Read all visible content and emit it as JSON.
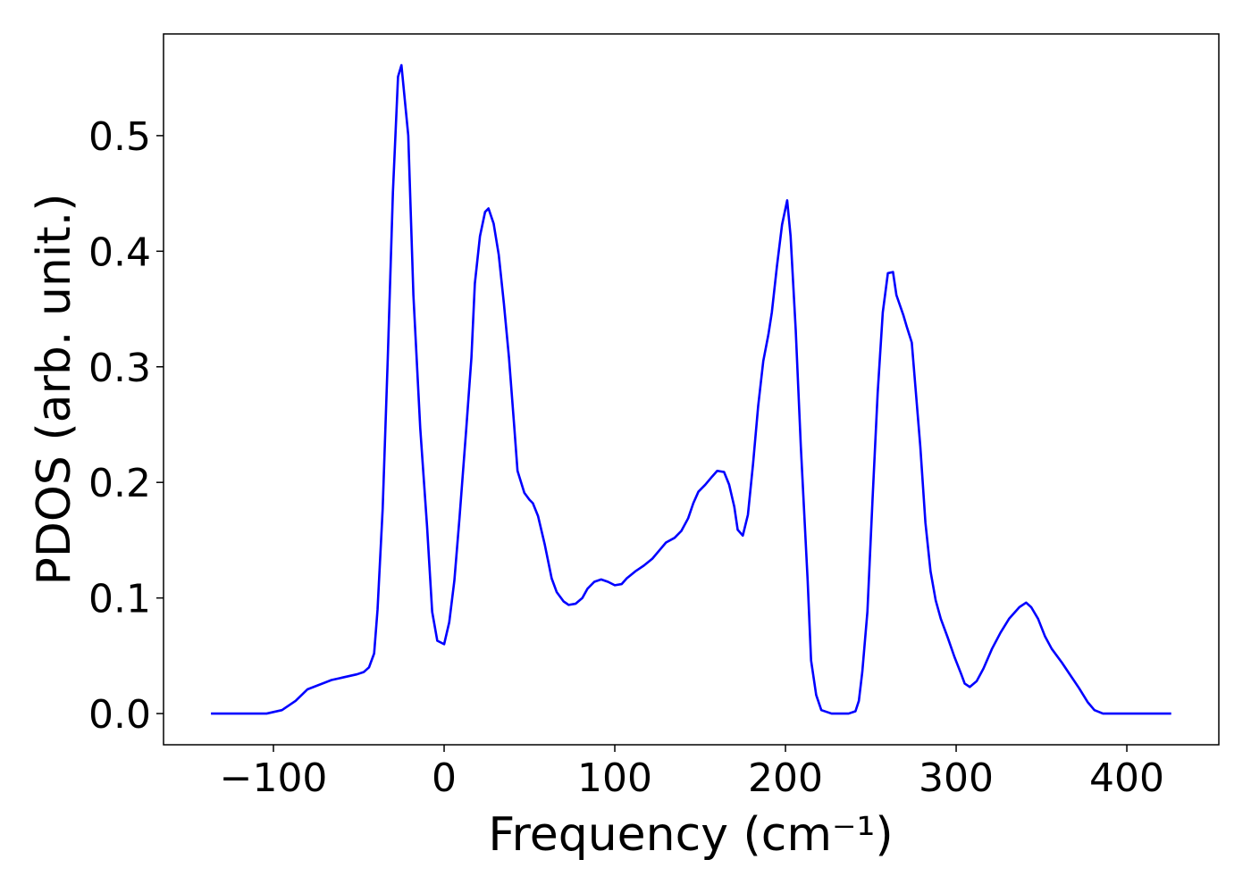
{
  "chart_data": {
    "type": "line",
    "xlabel": "Frequency (cm⁻¹)",
    "ylabel": "PDOS (arb. unit.)",
    "color": "#0000ff",
    "x": [
      -136.6,
      -104,
      -95,
      -87,
      -80,
      -66,
      -51,
      -47,
      -44,
      -41,
      -39,
      -36,
      -33,
      -30,
      -27,
      -25,
      -21,
      -18,
      -14,
      -10,
      -7,
      -4,
      0,
      3,
      6,
      9,
      13,
      16,
      18,
      21,
      24,
      26,
      29,
      32,
      35,
      38,
      41,
      43,
      47,
      50,
      52,
      55,
      59,
      63,
      66,
      70,
      73,
      77,
      81,
      84,
      88,
      92,
      96,
      100,
      104,
      107,
      112,
      117,
      122,
      126,
      130,
      135,
      139,
      143,
      146,
      149,
      153,
      157,
      160,
      164,
      167,
      170,
      172,
      175,
      178,
      181,
      184,
      187,
      190,
      192,
      195,
      198,
      201,
      203,
      206,
      209,
      213,
      215,
      218,
      221,
      227,
      237,
      241,
      243,
      245,
      248,
      251,
      254,
      257,
      260,
      263,
      265,
      269,
      271,
      274,
      276,
      279,
      282,
      285,
      288,
      291,
      295,
      299,
      303,
      305,
      308,
      312,
      316,
      321,
      326,
      331,
      337,
      341,
      344,
      348,
      352,
      356,
      362,
      367,
      372,
      377,
      381,
      386,
      426
    ],
    "values": [
      0,
      0,
      0.003,
      0.011,
      0.021,
      0.029,
      0.034,
      0.036,
      0.04,
      0.052,
      0.09,
      0.177,
      0.308,
      0.451,
      0.551,
      0.561,
      0.5,
      0.362,
      0.247,
      0.162,
      0.088,
      0.063,
      0.06,
      0.079,
      0.115,
      0.169,
      0.247,
      0.308,
      0.372,
      0.413,
      0.434,
      0.437,
      0.424,
      0.397,
      0.355,
      0.308,
      0.25,
      0.21,
      0.191,
      0.185,
      0.182,
      0.171,
      0.146,
      0.117,
      0.105,
      0.097,
      0.094,
      0.095,
      0.1,
      0.108,
      0.114,
      0.116,
      0.114,
      0.111,
      0.112,
      0.117,
      0.123,
      0.128,
      0.134,
      0.141,
      0.148,
      0.152,
      0.158,
      0.169,
      0.182,
      0.192,
      0.198,
      0.205,
      0.21,
      0.209,
      0.198,
      0.179,
      0.159,
      0.154,
      0.172,
      0.216,
      0.266,
      0.305,
      0.328,
      0.347,
      0.387,
      0.423,
      0.444,
      0.413,
      0.332,
      0.231,
      0.115,
      0.046,
      0.016,
      0.003,
      0,
      0,
      0.002,
      0.011,
      0.036,
      0.088,
      0.185,
      0.277,
      0.347,
      0.381,
      0.382,
      0.362,
      0.345,
      0.335,
      0.321,
      0.285,
      0.231,
      0.165,
      0.123,
      0.098,
      0.082,
      0.066,
      0.049,
      0.034,
      0.026,
      0.023,
      0.028,
      0.039,
      0.056,
      0.07,
      0.082,
      0.092,
      0.096,
      0.092,
      0.082,
      0.067,
      0.056,
      0.044,
      0.033,
      0.022,
      0.01,
      0.003,
      0,
      0
    ],
    "xlim": [
      -164.4,
      453.9
    ],
    "ylim": [
      -0.027,
      0.588
    ],
    "xticks": [
      {
        "value": -100,
        "label": "−100"
      },
      0,
      100,
      200,
      300,
      400
    ],
    "yticks": [
      {
        "value": 0,
        "label": "0.0"
      },
      0.1,
      0.2,
      0.3,
      0.4,
      0.5
    ]
  }
}
